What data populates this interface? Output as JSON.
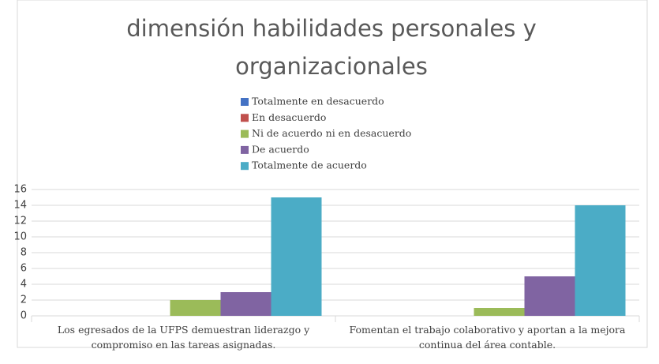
{
  "chart_data": {
    "type": "bar",
    "title": "dimensión habilidades personales y organizacionales",
    "categories": [
      "Los egresados de la UFPS demuestran liderazgo y compromiso en las tareas asignadas.",
      "Fomentan el trabajo colaborativo y aportan a la mejora continua del área contable."
    ],
    "series": [
      {
        "name": "Totalmente en desacuerdo",
        "color": "#4472c4",
        "values": [
          0,
          0
        ]
      },
      {
        "name": "En desacuerdo",
        "color": "#c0504d",
        "values": [
          0,
          0
        ]
      },
      {
        "name": "Ni de acuerdo ni en desacuerdo",
        "color": "#9bbb59",
        "values": [
          2,
          1
        ]
      },
      {
        "name": "De acuerdo",
        "color": "#8064a2",
        "values": [
          3,
          5
        ]
      },
      {
        "name": "Totalmente de acuerdo",
        "color": "#4bacc6",
        "values": [
          15,
          14
        ]
      }
    ],
    "ylim": [
      0,
      16
    ],
    "yticks": [
      0,
      2,
      4,
      6,
      8,
      10,
      12,
      14,
      16
    ],
    "grid": true
  }
}
